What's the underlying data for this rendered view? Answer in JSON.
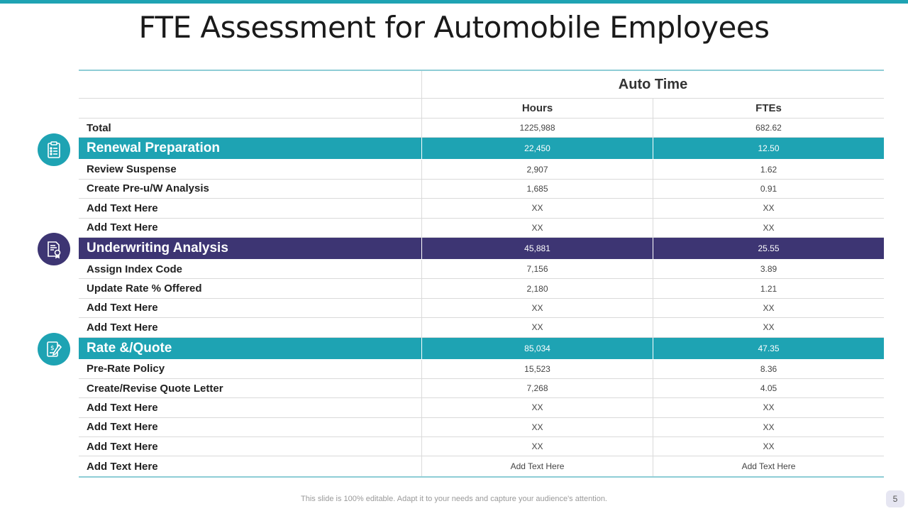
{
  "title": "FTE Assessment for Automobile Employees",
  "header": {
    "group": "Auto Time",
    "col_hours": "Hours",
    "col_ftes": "FTEs"
  },
  "total": {
    "label": "Total",
    "hours": "1225,988",
    "ftes": "682.62"
  },
  "sections": [
    {
      "label": "Renewal Preparation",
      "hours": "22,450",
      "ftes": "12.50",
      "color": "#1ea3b3",
      "icon": "clipboard-list-icon",
      "rows": [
        {
          "label": "Review Suspense",
          "hours": "2,907",
          "ftes": "1.62"
        },
        {
          "label": "Create Pre-u/W Analysis",
          "hours": "1,685",
          "ftes": "0.91"
        },
        {
          "label": "Add Text Here",
          "hours": "XX",
          "ftes": "XX"
        },
        {
          "label": "Add Text Here",
          "hours": "XX",
          "ftes": "XX"
        }
      ]
    },
    {
      "label": "Underwriting Analysis",
      "hours": "45,881",
      "ftes": "25.55",
      "color": "#3d3573",
      "icon": "certificate-document-icon",
      "rows": [
        {
          "label": "Assign Index Code",
          "hours": "7,156",
          "ftes": "3.89"
        },
        {
          "label": "Update Rate % Offered",
          "hours": "2,180",
          "ftes": "1.21"
        },
        {
          "label": "Add Text Here",
          "hours": "XX",
          "ftes": "XX"
        },
        {
          "label": "Add Text Here",
          "hours": "XX",
          "ftes": "XX"
        }
      ]
    },
    {
      "label": "Rate &/Quote",
      "hours": "85,034",
      "ftes": "47.35",
      "color": "#1ea3b3",
      "icon": "invoice-pen-icon",
      "rows": [
        {
          "label": "Pre-Rate Policy",
          "hours": "15,523",
          "ftes": "8.36"
        },
        {
          "label": "Create/Revise Quote Letter",
          "hours": "7,268",
          "ftes": "4.05"
        },
        {
          "label": "Add Text Here",
          "hours": "XX",
          "ftes": "XX"
        },
        {
          "label": "Add Text Here",
          "hours": "XX",
          "ftes": "XX"
        },
        {
          "label": "Add Text Here",
          "hours": "XX",
          "ftes": "XX"
        },
        {
          "label": "Add Text Here",
          "hours": "Add Text Here",
          "ftes": "Add Text Here"
        }
      ]
    }
  ],
  "footer": "This slide is 100% editable. Adapt it to your needs and capture your audience's attention.",
  "page_number": "5"
}
